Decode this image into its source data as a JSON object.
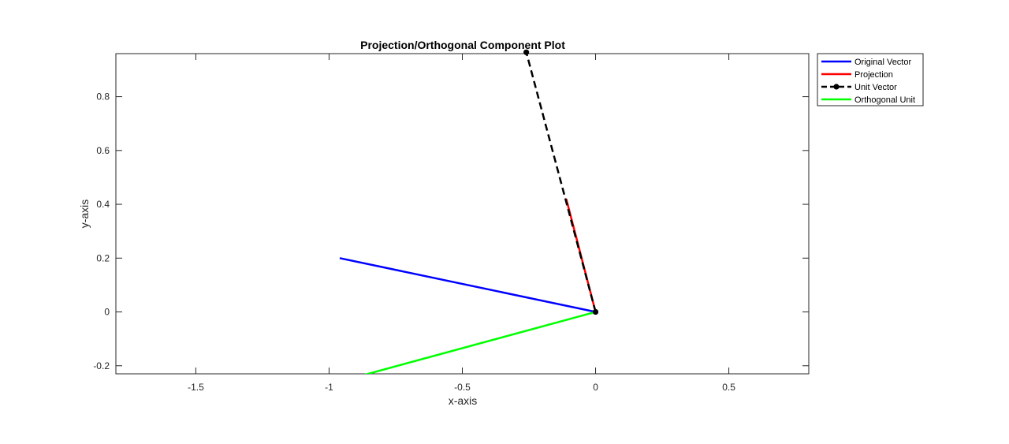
{
  "chart_data": {
    "type": "line",
    "title": "Projection/Orthogonal Component Plot",
    "xlabel": "x-axis",
    "ylabel": "y-axis",
    "xlim": [
      -1.8,
      0.8
    ],
    "ylim": [
      -0.23,
      0.96
    ],
    "xticks": [
      -1.5,
      -1,
      -0.5,
      0,
      0.5
    ],
    "xtick_labels": [
      "-1.5",
      "-1",
      "-0.5",
      "0",
      "0.5"
    ],
    "yticks": [
      -0.2,
      0,
      0.2,
      0.4,
      0.6,
      0.8
    ],
    "ytick_labels": [
      "-0.2",
      "0",
      "0.2",
      "0.4",
      "0.6",
      "0.8"
    ],
    "grid": false,
    "legend_position": "outside-top-right",
    "series": [
      {
        "name": "Original Vector",
        "color": "#0000ff",
        "style": "solid",
        "marker": "none",
        "x": [
          0,
          -0.96
        ],
        "y": [
          0,
          0.2
        ]
      },
      {
        "name": "Projection",
        "color": "#ff0000",
        "style": "solid",
        "marker": "none",
        "x": [
          0,
          -0.11
        ],
        "y": [
          0,
          0.42
        ]
      },
      {
        "name": "Unit Vector",
        "color": "#000000",
        "style": "dashed",
        "marker": "circle",
        "x": [
          0,
          -0.26
        ],
        "y": [
          0,
          0.965
        ]
      },
      {
        "name": "Orthogonal Unit",
        "color": "#00ff00",
        "style": "solid",
        "marker": "none",
        "x": [
          0,
          -0.965
        ],
        "y": [
          0,
          -0.26
        ]
      }
    ]
  }
}
